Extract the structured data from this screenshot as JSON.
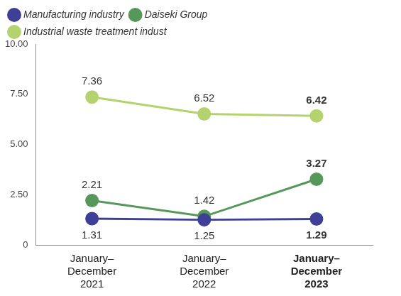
{
  "chart_data": {
    "type": "line",
    "categories": [
      "January–December 2021",
      "January–December 2022",
      "January–December 2023"
    ],
    "series": [
      {
        "name": "Manufacturing industry",
        "color": "#3f3f98",
        "values": [
          1.31,
          1.25,
          1.29
        ]
      },
      {
        "name": "Daiseki Group",
        "color": "#55985a",
        "values": [
          2.21,
          1.42,
          3.27
        ]
      },
      {
        "name": "Industrial waste treatment indust",
        "color": "#b4d36e",
        "values": [
          7.36,
          6.52,
          6.42
        ]
      }
    ],
    "ylim": [
      0,
      10
    ],
    "yticks": [
      0,
      {
        "value": 2.5,
        "label": "2.50"
      },
      {
        "value": 5,
        "label": "5.00"
      },
      {
        "value": 7.5,
        "label": "7.50"
      },
      {
        "value": 10,
        "label": "10.00"
      }
    ],
    "grid": false,
    "legend": "top",
    "data_labels": true,
    "marker": "circle",
    "line_style": "solid"
  }
}
